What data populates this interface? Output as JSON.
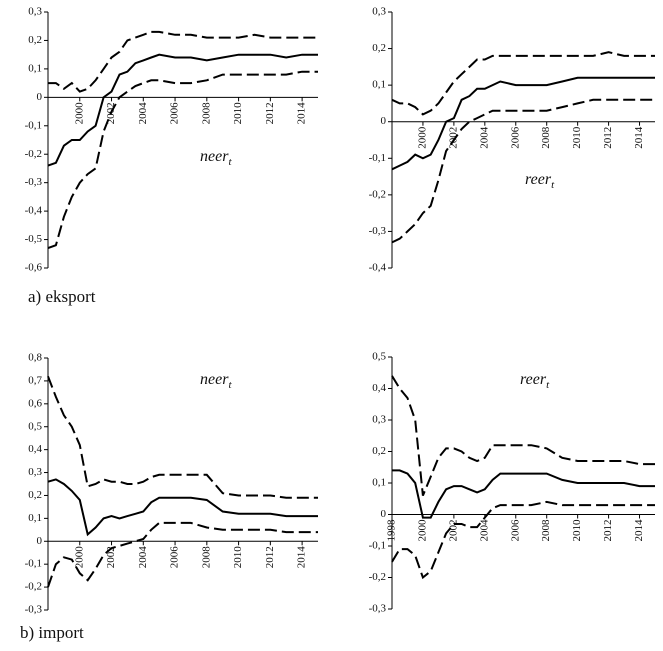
{
  "captions": [
    "a) eksport",
    "b) import"
  ],
  "chart_data": [
    {
      "type": "line",
      "annotation": {
        "text": "neer",
        "subscript": "t"
      },
      "x": [
        1998,
        1998.5,
        1999,
        1999.5,
        2000,
        2000.5,
        2001,
        2001.5,
        2002,
        2002.5,
        2003,
        2003.5,
        2004,
        2004.5,
        2005,
        2006,
        2007,
        2008,
        2009,
        2010,
        2011,
        2012,
        2013,
        2014,
        2015
      ],
      "xlim": [
        1998,
        2015
      ],
      "xticks": [
        2000,
        2002,
        2004,
        2006,
        2008,
        2010,
        2012,
        2014
      ],
      "ylim": [
        -0.6,
        0.3
      ],
      "yticks": [
        {
          "value": -0.6,
          "label": "-0,6"
        },
        {
          "value": -0.5,
          "label": "-0,5"
        },
        {
          "value": -0.4,
          "label": "-0,4"
        },
        {
          "value": -0.3,
          "label": "-0,3"
        },
        {
          "value": -0.2,
          "label": "-0,2"
        },
        {
          "value": -0.1,
          "label": "-0,1"
        },
        0,
        {
          "value": 0.1,
          "label": "0,1"
        },
        {
          "value": 0.2,
          "label": "0,2"
        },
        {
          "value": 0.3,
          "label": "0,3"
        }
      ],
      "series": [
        {
          "color": "#000",
          "dash": false,
          "values": [
            -0.24,
            -0.23,
            -0.17,
            -0.15,
            -0.15,
            -0.12,
            -0.1,
            0.0,
            0.02,
            0.08,
            0.09,
            0.12,
            0.13,
            0.14,
            0.15,
            0.14,
            0.14,
            0.13,
            0.14,
            0.15,
            0.15,
            0.15,
            0.14,
            0.15,
            0.15
          ]
        },
        {
          "color": "#000",
          "dash": true,
          "values": [
            0.05,
            0.05,
            0.03,
            0.05,
            0.02,
            0.03,
            0.06,
            0.1,
            0.14,
            0.16,
            0.2,
            0.21,
            0.22,
            0.23,
            0.23,
            0.22,
            0.22,
            0.21,
            0.21,
            0.21,
            0.22,
            0.21,
            0.21,
            0.21,
            0.21
          ]
        },
        {
          "color": "#000",
          "dash": true,
          "values": [
            -0.53,
            -0.52,
            -0.42,
            -0.35,
            -0.3,
            -0.27,
            -0.25,
            -0.12,
            -0.05,
            0.0,
            0.02,
            0.04,
            0.05,
            0.06,
            0.06,
            0.05,
            0.05,
            0.06,
            0.08,
            0.08,
            0.08,
            0.08,
            0.08,
            0.09,
            0.09
          ]
        }
      ]
    },
    {
      "type": "line",
      "annotation": {
        "text": "reer",
        "subscript": "t"
      },
      "x": [
        1998,
        1998.5,
        1999,
        1999.5,
        2000,
        2000.5,
        2001,
        2001.5,
        2002,
        2002.5,
        2003,
        2003.5,
        2004,
        2004.5,
        2005,
        2006,
        2007,
        2008,
        2009,
        2010,
        2011,
        2012,
        2013,
        2014,
        2015
      ],
      "xlim": [
        1998,
        2015
      ],
      "xticks": [
        2000,
        2002,
        2004,
        2006,
        2008,
        2010,
        2012,
        2014
      ],
      "ylim": [
        -0.4,
        0.3
      ],
      "yticks": [
        {
          "value": -0.4,
          "label": "-0,4"
        },
        {
          "value": -0.3,
          "label": "-0,3"
        },
        {
          "value": -0.2,
          "label": "-0,2"
        },
        {
          "value": -0.1,
          "label": "-0,1"
        },
        0,
        {
          "value": 0.1,
          "label": "0,1"
        },
        {
          "value": 0.2,
          "label": "0,2"
        },
        {
          "value": 0.3,
          "label": "0,3"
        }
      ],
      "series": [
        {
          "color": "#000",
          "dash": false,
          "values": [
            -0.13,
            -0.12,
            -0.11,
            -0.09,
            -0.1,
            -0.09,
            -0.05,
            0.0,
            0.01,
            0.06,
            0.07,
            0.09,
            0.09,
            0.1,
            0.11,
            0.1,
            0.1,
            0.1,
            0.11,
            0.12,
            0.12,
            0.12,
            0.12,
            0.12,
            0.12
          ]
        },
        {
          "color": "#000",
          "dash": true,
          "values": [
            0.06,
            0.05,
            0.05,
            0.04,
            0.02,
            0.03,
            0.05,
            0.08,
            0.11,
            0.13,
            0.15,
            0.17,
            0.17,
            0.18,
            0.18,
            0.18,
            0.18,
            0.18,
            0.18,
            0.18,
            0.18,
            0.19,
            0.18,
            0.18,
            0.18
          ]
        },
        {
          "color": "#000",
          "dash": true,
          "values": [
            -0.33,
            -0.32,
            -0.3,
            -0.28,
            -0.25,
            -0.23,
            -0.16,
            -0.08,
            -0.05,
            -0.02,
            0.0,
            0.01,
            0.02,
            0.03,
            0.03,
            0.03,
            0.03,
            0.03,
            0.04,
            0.05,
            0.06,
            0.06,
            0.06,
            0.06,
            0.06
          ]
        }
      ]
    },
    {
      "type": "line",
      "annotation": {
        "text": "neer",
        "subscript": "t"
      },
      "x": [
        1998,
        1998.5,
        1999,
        1999.5,
        2000,
        2000.5,
        2001,
        2001.5,
        2002,
        2002.5,
        2003,
        2003.5,
        2004,
        2004.5,
        2005,
        2006,
        2007,
        2008,
        2009,
        2010,
        2011,
        2012,
        2013,
        2014,
        2015
      ],
      "xlim": [
        1998,
        2015
      ],
      "xticks": [
        2000,
        2002,
        2004,
        2006,
        2008,
        2010,
        2012,
        2014
      ],
      "ylim": [
        -0.3,
        0.8
      ],
      "yticks": [
        {
          "value": -0.3,
          "label": "-0,3"
        },
        {
          "value": -0.2,
          "label": "-0,2"
        },
        {
          "value": -0.1,
          "label": "-0,1"
        },
        0,
        {
          "value": 0.1,
          "label": "0,1"
        },
        {
          "value": 0.2,
          "label": "0,2"
        },
        {
          "value": 0.3,
          "label": "0,3"
        },
        {
          "value": 0.4,
          "label": "0,4"
        },
        {
          "value": 0.5,
          "label": "0,5"
        },
        {
          "value": 0.6,
          "label": "0,6"
        },
        {
          "value": 0.7,
          "label": "0,7"
        },
        {
          "value": 0.8,
          "label": "0,8"
        }
      ],
      "series": [
        {
          "color": "#000",
          "dash": false,
          "values": [
            0.26,
            0.27,
            0.25,
            0.22,
            0.18,
            0.03,
            0.06,
            0.1,
            0.11,
            0.1,
            0.11,
            0.12,
            0.13,
            0.17,
            0.19,
            0.19,
            0.19,
            0.18,
            0.13,
            0.12,
            0.12,
            0.12,
            0.11,
            0.11,
            0.11
          ]
        },
        {
          "color": "#000",
          "dash": true,
          "values": [
            0.72,
            0.63,
            0.55,
            0.5,
            0.42,
            0.24,
            0.25,
            0.27,
            0.26,
            0.26,
            0.25,
            0.25,
            0.26,
            0.28,
            0.29,
            0.29,
            0.29,
            0.29,
            0.21,
            0.2,
            0.2,
            0.2,
            0.19,
            0.19,
            0.19
          ]
        },
        {
          "color": "#000",
          "dash": true,
          "values": [
            -0.2,
            -0.1,
            -0.07,
            -0.08,
            -0.14,
            -0.17,
            -0.12,
            -0.06,
            -0.03,
            -0.02,
            -0.01,
            0.0,
            0.01,
            0.05,
            0.08,
            0.08,
            0.08,
            0.06,
            0.05,
            0.05,
            0.05,
            0.05,
            0.04,
            0.04,
            0.04
          ]
        }
      ]
    },
    {
      "type": "line",
      "annotation": {
        "text": "reer",
        "subscript": "t"
      },
      "x": [
        1998,
        1998.5,
        1999,
        1999.5,
        2000,
        2000.5,
        2001,
        2001.5,
        2002,
        2002.5,
        2003,
        2003.5,
        2004,
        2004.5,
        2005,
        2006,
        2007,
        2008,
        2009,
        2010,
        2011,
        2012,
        2013,
        2014,
        2015
      ],
      "xlim": [
        1998,
        2015
      ],
      "xticks": [
        1998,
        2000,
        2002,
        2004,
        2006,
        2008,
        2010,
        2012,
        2014
      ],
      "ylim": [
        -0.3,
        0.5
      ],
      "yticks": [
        {
          "value": -0.3,
          "label": "-0,3"
        },
        {
          "value": -0.2,
          "label": "-0,2"
        },
        {
          "value": -0.1,
          "label": "-0,1"
        },
        0,
        {
          "value": 0.1,
          "label": "0,1"
        },
        {
          "value": 0.2,
          "label": "0,2"
        },
        {
          "value": 0.3,
          "label": "0,3"
        },
        {
          "value": 0.4,
          "label": "0,4"
        },
        {
          "value": 0.5,
          "label": "0,5"
        }
      ],
      "series": [
        {
          "color": "#000",
          "dash": false,
          "values": [
            0.14,
            0.14,
            0.13,
            0.1,
            -0.01,
            -0.01,
            0.04,
            0.08,
            0.09,
            0.09,
            0.08,
            0.07,
            0.08,
            0.11,
            0.13,
            0.13,
            0.13,
            0.13,
            0.11,
            0.1,
            0.1,
            0.1,
            0.1,
            0.09,
            0.09
          ]
        },
        {
          "color": "#000",
          "dash": true,
          "values": [
            0.44,
            0.4,
            0.37,
            0.3,
            0.06,
            0.12,
            0.18,
            0.21,
            0.21,
            0.2,
            0.18,
            0.17,
            0.18,
            0.22,
            0.22,
            0.22,
            0.22,
            0.21,
            0.18,
            0.17,
            0.17,
            0.17,
            0.17,
            0.16,
            0.16
          ]
        },
        {
          "color": "#000",
          "dash": true,
          "values": [
            -0.15,
            -0.11,
            -0.11,
            -0.13,
            -0.2,
            -0.18,
            -0.12,
            -0.06,
            -0.03,
            -0.03,
            -0.04,
            -0.04,
            -0.01,
            0.02,
            0.03,
            0.03,
            0.03,
            0.04,
            0.03,
            0.03,
            0.03,
            0.03,
            0.03,
            0.03,
            0.03
          ]
        }
      ]
    }
  ]
}
